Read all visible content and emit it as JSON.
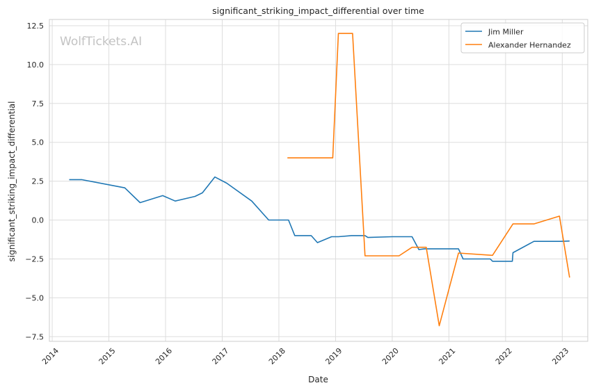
{
  "chart_data": {
    "type": "line",
    "title": "significant_striking_impact_differential over time",
    "xlabel": "Date",
    "ylabel": "significant_striking_impact_differential",
    "watermark": "WolfTickets.AI",
    "xlim": [
      2013.95,
      2023.45
    ],
    "ylim": [
      -7.8,
      12.9
    ],
    "x_ticks": [
      2014,
      2015,
      2016,
      2017,
      2018,
      2019,
      2020,
      2021,
      2022,
      2023
    ],
    "x_tick_labels": [
      "2014",
      "2015",
      "2016",
      "2017",
      "2018",
      "2019",
      "2020",
      "2021",
      "2022",
      "2023"
    ],
    "y_ticks": [
      -7.5,
      -5.0,
      -2.5,
      0.0,
      2.5,
      5.0,
      7.5,
      10.0,
      12.5
    ],
    "y_tick_labels": [
      "−7.5",
      "−5.0",
      "−2.5",
      "0.0",
      "2.5",
      "5.0",
      "7.5",
      "10.0",
      "12.5"
    ],
    "grid": true,
    "legend_position": "top-right",
    "series": [
      {
        "name": "Jim Miller",
        "color": "#1f77b4",
        "points": [
          [
            2014.3,
            2.6
          ],
          [
            2014.52,
            2.6
          ],
          [
            2015.28,
            2.07
          ],
          [
            2015.55,
            1.12
          ],
          [
            2015.95,
            1.57
          ],
          [
            2016.17,
            1.22
          ],
          [
            2016.52,
            1.52
          ],
          [
            2016.65,
            1.75
          ],
          [
            2016.87,
            2.77
          ],
          [
            2017.08,
            2.37
          ],
          [
            2017.52,
            1.22
          ],
          [
            2017.82,
            0.0
          ],
          [
            2018.17,
            0.0
          ],
          [
            2018.28,
            -1.0
          ],
          [
            2018.57,
            -1.0
          ],
          [
            2018.68,
            -1.45
          ],
          [
            2018.93,
            -1.07
          ],
          [
            2019.05,
            -1.07
          ],
          [
            2019.28,
            -1.0
          ],
          [
            2019.52,
            -1.0
          ],
          [
            2019.57,
            -1.12
          ],
          [
            2020.0,
            -1.07
          ],
          [
            2020.35,
            -1.07
          ],
          [
            2020.47,
            -1.9
          ],
          [
            2020.57,
            -1.85
          ],
          [
            2021.17,
            -1.85
          ],
          [
            2021.25,
            -2.5
          ],
          [
            2021.73,
            -2.5
          ],
          [
            2021.77,
            -2.65
          ],
          [
            2022.12,
            -2.65
          ],
          [
            2022.13,
            -2.1
          ],
          [
            2022.5,
            -1.37
          ],
          [
            2022.97,
            -1.37
          ],
          [
            2023.13,
            -1.35
          ]
        ]
      },
      {
        "name": "Alexander Hernandez",
        "color": "#ff7f0e",
        "points": [
          [
            2018.15,
            4.0
          ],
          [
            2018.95,
            4.0
          ],
          [
            2019.05,
            12.0
          ],
          [
            2019.3,
            12.0
          ],
          [
            2019.52,
            -2.3
          ],
          [
            2020.12,
            -2.3
          ],
          [
            2020.35,
            -1.75
          ],
          [
            2020.6,
            -1.75
          ],
          [
            2020.83,
            -6.8
          ],
          [
            2021.17,
            -2.12
          ],
          [
            2021.77,
            -2.27
          ],
          [
            2022.13,
            -0.25
          ],
          [
            2022.5,
            -0.25
          ],
          [
            2022.95,
            0.25
          ],
          [
            2023.13,
            -3.7
          ]
        ]
      }
    ]
  }
}
